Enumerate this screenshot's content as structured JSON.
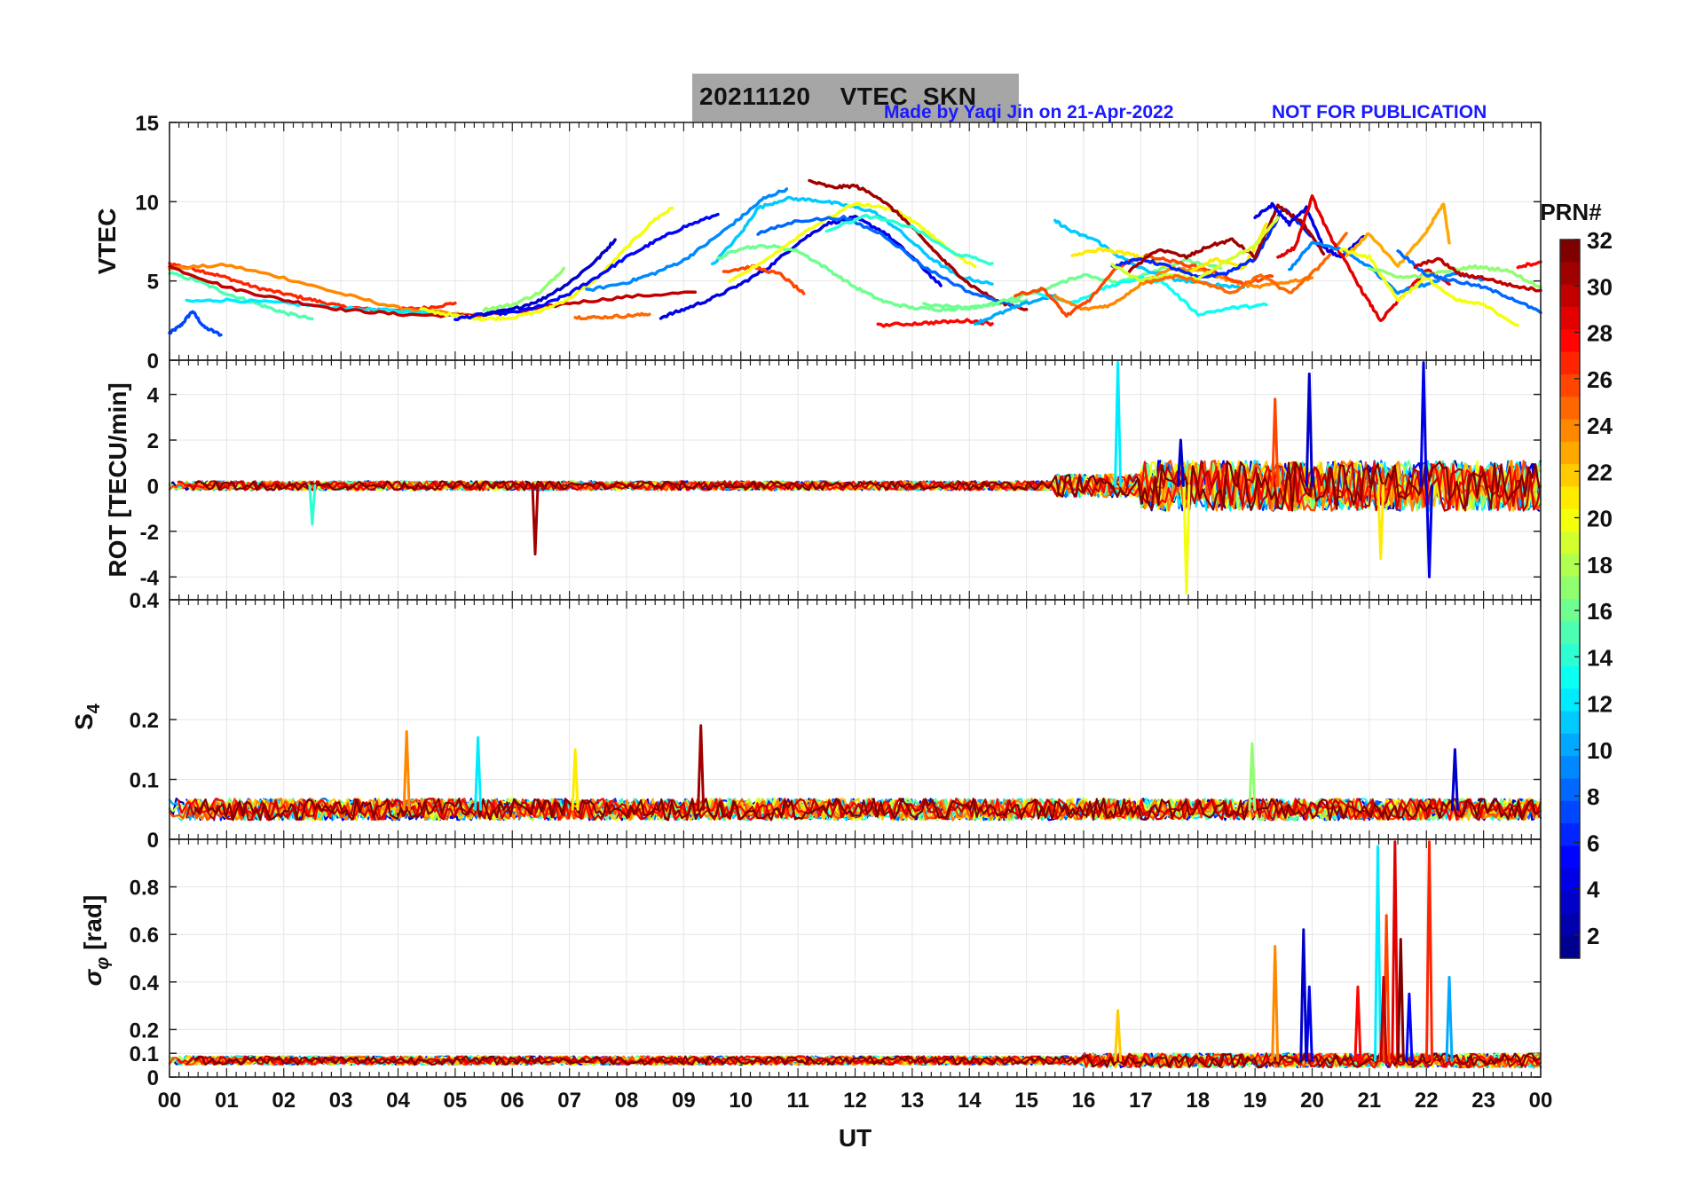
{
  "header": {
    "title": "20211120    VTEC  SKN",
    "credit": "Made by Yaqi Jin on 21-Apr-2022",
    "notice": "NOT FOR PUBLICATION"
  },
  "colors": {
    "credit": "#1a1aff",
    "title_box": "#a6a6a6",
    "colormap": [
      "#00008f",
      "#0000ff",
      "#0080ff",
      "#00ffff",
      "#80ff80",
      "#ffff00",
      "#ff8000",
      "#ff0000",
      "#800000"
    ]
  },
  "chart_data": [
    {
      "id": "vtec",
      "type": "line",
      "ylabel": "VTEC",
      "ylim": [
        0,
        15
      ],
      "yticks": [
        "0",
        "5",
        "10",
        "15"
      ],
      "x_unit": "UT hour",
      "series": [
        {
          "prn": 7,
          "x": [
            0,
            0.2,
            0.4,
            0.6,
            0.9
          ],
          "y": [
            1.7,
            2.2,
            3.1,
            2.1,
            1.6
          ]
        },
        {
          "prn": 27,
          "x": [
            0,
            0.5,
            1,
            1.5,
            2,
            2.5,
            3,
            3.5,
            4,
            4.5,
            5
          ],
          "y": [
            6.1,
            5.7,
            5.2,
            4.6,
            4.2,
            3.8,
            3.4,
            3.2,
            3.2,
            3.3,
            3.6
          ]
        },
        {
          "prn": 24,
          "x": [
            0,
            1,
            2,
            3,
            4,
            5,
            5.5
          ],
          "y": [
            5.8,
            6.0,
            5.2,
            4.2,
            3.3,
            2.9,
            2.8
          ]
        },
        {
          "prn": 15,
          "x": [
            0,
            0.5,
            1,
            1.5,
            2,
            2.5
          ],
          "y": [
            5.5,
            5.0,
            4.2,
            3.6,
            3.0,
            2.6
          ]
        },
        {
          "prn": 12,
          "x": [
            0.3,
            1,
            2,
            3,
            4,
            5
          ],
          "y": [
            3.7,
            3.8,
            3.6,
            3.3,
            3.1,
            2.9
          ]
        },
        {
          "prn": 30,
          "x": [
            0,
            1,
            2,
            3,
            4,
            5,
            6,
            7,
            8,
            9.2
          ],
          "y": [
            5.9,
            4.6,
            3.8,
            3.2,
            2.9,
            2.8,
            3.0,
            3.6,
            4.0,
            4.3
          ]
        },
        {
          "prn": 20,
          "x": [
            4.4,
            5,
            5.5,
            6,
            6.5,
            7,
            7.5,
            8,
            8.5,
            8.8
          ],
          "y": [
            3.2,
            2.8,
            2.6,
            2.7,
            3.1,
            3.9,
            5.2,
            7.1,
            8.9,
            9.6
          ]
        },
        {
          "prn": 5,
          "x": [
            5,
            5.5,
            6,
            6.5,
            7,
            7.5,
            8,
            8.5,
            9,
            9.6
          ],
          "y": [
            2.6,
            2.9,
            3.0,
            3.4,
            4.2,
            5.3,
            6.5,
            7.5,
            8.4,
            9.2
          ]
        },
        {
          "prn": 3,
          "x": [
            5.5,
            6,
            6.5,
            7,
            7.5,
            7.8
          ],
          "y": [
            2.9,
            3.2,
            3.8,
            4.9,
            6.4,
            7.6
          ]
        },
        {
          "prn": 17,
          "x": [
            5.5,
            6,
            6.5,
            6.9
          ],
          "y": [
            3.2,
            3.5,
            4.3,
            5.8
          ]
        },
        {
          "prn": 25,
          "x": [
            7.1,
            7.5,
            8,
            8.4
          ],
          "y": [
            2.7,
            2.7,
            2.8,
            2.9
          ]
        },
        {
          "prn": 4,
          "x": [
            8.6,
            9,
            9.5,
            10,
            10.5,
            11,
            11.5,
            12,
            12.5,
            13,
            13.5
          ],
          "y": [
            2.7,
            3.2,
            3.9,
            4.8,
            5.9,
            7.4,
            8.6,
            9.0,
            8.1,
            6.5,
            4.7
          ]
        },
        {
          "prn": 9,
          "x": [
            7.3,
            8,
            8.5,
            9,
            9.5,
            10,
            10.4,
            10.8
          ],
          "y": [
            4.4,
            4.9,
            5.5,
            6.3,
            7.6,
            9.0,
            10.2,
            10.8
          ]
        },
        {
          "prn": 11,
          "x": [
            9.5,
            10,
            10.3,
            10.8,
            11.3,
            11.8,
            12.3,
            12.7,
            13.3,
            13.8,
            14.4
          ],
          "y": [
            6.0,
            8.0,
            9.6,
            10.2,
            10.1,
            9.8,
            9.4,
            8.4,
            6.5,
            5.3,
            4.8
          ]
        },
        {
          "prn": 16,
          "x": [
            9.6,
            10,
            10.5,
            11,
            11.5,
            12,
            12.5,
            13,
            13.5,
            14,
            14.5,
            15
          ],
          "y": [
            6.4,
            7.1,
            7.2,
            6.9,
            5.8,
            4.6,
            3.7,
            3.3,
            3.2,
            3.3,
            3.6,
            3.8
          ]
        },
        {
          "prn": 26,
          "x": [
            9.7,
            10.2,
            10.7,
            11.1
          ],
          "y": [
            5.6,
            5.9,
            5.4,
            4.2
          ]
        },
        {
          "prn": 20,
          "x": [
            9.8,
            10.5,
            11.2,
            12,
            12.7,
            13.2,
            13.7,
            14.1
          ],
          "y": [
            4.9,
            6.5,
            8.3,
            9.9,
            9.5,
            8.3,
            6.8,
            5.9
          ]
        },
        {
          "prn": 31,
          "x": [
            11.2,
            11.6,
            12,
            12.4,
            12.8,
            13.2,
            13.6,
            14,
            14.5,
            15
          ],
          "y": [
            11.3,
            10.9,
            11.0,
            10.3,
            9.1,
            7.6,
            6.1,
            4.8,
            3.7,
            3.2
          ]
        },
        {
          "prn": 8,
          "x": [
            10.3,
            11,
            11.8,
            12.5,
            13.2,
            14,
            14.8
          ],
          "y": [
            8.0,
            8.8,
            9.0,
            7.9,
            5.9,
            4.3,
            3.4
          ]
        },
        {
          "prn": 14,
          "x": [
            11.5,
            12.2,
            13,
            13.7,
            14.4
          ],
          "y": [
            8.2,
            9.1,
            8.4,
            6.8,
            6.1
          ]
        },
        {
          "prn": 28,
          "x": [
            12.4,
            13,
            13.5,
            14,
            14.4
          ],
          "y": [
            2.2,
            2.3,
            2.4,
            2.5,
            2.3
          ]
        },
        {
          "prn": 10,
          "x": [
            14.1,
            14.5,
            15,
            15.5
          ],
          "y": [
            2.3,
            2.9,
            3.6,
            4.1
          ]
        },
        {
          "prn": 16,
          "x": [
            13.2,
            14,
            14.8,
            15.4,
            16,
            16.6,
            17.2,
            17.8,
            18.4
          ],
          "y": [
            3.5,
            3.3,
            3.9,
            4.6,
            5.4,
            4.9,
            5.6,
            6.3,
            5.8
          ]
        },
        {
          "prn": 11,
          "x": [
            15.5,
            15.8,
            16.2,
            16.6,
            17,
            17.6,
            18.2,
            18.8
          ],
          "y": [
            8.8,
            8.1,
            7.6,
            6.6,
            5.8,
            5.1,
            4.8,
            4.6
          ]
        },
        {
          "prn": 13,
          "x": [
            15.2,
            15.8,
            16.4,
            17,
            17.4,
            18,
            18.6,
            19.2
          ],
          "y": [
            4.2,
            3.6,
            4.6,
            5.2,
            4.9,
            2.9,
            3.3,
            3.5
          ]
        },
        {
          "prn": 24,
          "x": [
            15.5,
            16,
            16.5,
            17,
            17.5,
            18,
            18.5,
            19,
            19.5,
            20
          ],
          "y": [
            4.0,
            3.2,
            3.5,
            4.8,
            5.8,
            5.7,
            5.1,
            4.6,
            4.9,
            5.2
          ]
        },
        {
          "prn": 26,
          "x": [
            14.8,
            15.3,
            15.7,
            16.1,
            16.6,
            17.1,
            17.6,
            18.2,
            18.8,
            19.3
          ],
          "y": [
            4.1,
            4.5,
            2.8,
            3.8,
            5.9,
            6.6,
            6.2,
            5.7,
            4.8,
            5.3
          ]
        },
        {
          "prn": 21,
          "x": [
            15.8,
            16.3,
            16.8,
            17.2,
            17.8,
            18.3,
            18.8,
            19.2
          ],
          "y": [
            6.6,
            7.0,
            6.7,
            6.2,
            5.5,
            6.4,
            5.8,
            8.6
          ]
        },
        {
          "prn": 6,
          "x": [
            16.5,
            17,
            17.5,
            18,
            18.5,
            19,
            19.5,
            20
          ],
          "y": [
            5.9,
            6.4,
            5.9,
            5.2,
            5.5,
            6.4,
            9.6,
            7.8
          ]
        },
        {
          "prn": 31,
          "x": [
            16.8,
            17.3,
            17.8,
            18.2,
            18.6,
            19,
            19.4,
            19.8,
            20.2
          ],
          "y": [
            5.6,
            7.0,
            6.5,
            7.2,
            7.6,
            6.5,
            9.7,
            8.8,
            6.7
          ]
        },
        {
          "prn": 19,
          "x": [
            16.5,
            17,
            17.5,
            18,
            18.5,
            19,
            19.4
          ],
          "y": [
            6.0,
            5.0,
            5.4,
            5.1,
            6.3,
            7.2,
            9.0
          ]
        },
        {
          "prn": 25,
          "x": [
            17.1,
            17.6,
            18.1,
            18.6,
            19.1,
            19.6,
            20.1,
            20.6
          ],
          "y": [
            4.9,
            5.3,
            4.9,
            4.2,
            5.4,
            4.2,
            5.8,
            8.0
          ]
        },
        {
          "prn": 4,
          "x": [
            19,
            19.3,
            19.6,
            19.9,
            20.2,
            20.5,
            20.9
          ],
          "y": [
            9.0,
            9.8,
            8.6,
            9.6,
            7.1,
            6.5,
            7.8
          ]
        },
        {
          "prn": 29,
          "x": [
            19.4,
            19.7,
            20,
            20.3,
            20.6,
            20.9,
            21.2,
            21.6,
            22,
            22.4
          ],
          "y": [
            6.5,
            7.1,
            10.3,
            7.9,
            6.1,
            4.2,
            2.5,
            4.1,
            5.7,
            4.8
          ]
        },
        {
          "prn": 9,
          "x": [
            19.6,
            20,
            20.5,
            21,
            21.5,
            22,
            22.5,
            23
          ],
          "y": [
            5.7,
            7.4,
            7.0,
            5.9,
            4.3,
            4.8,
            5.5,
            5.1
          ]
        },
        {
          "prn": 23,
          "x": [
            20.6,
            21,
            21.5,
            22,
            22.3,
            22.4
          ],
          "y": [
            6.6,
            8.0,
            5.9,
            8.1,
            9.9,
            7.4
          ]
        },
        {
          "prn": 20,
          "x": [
            20.5,
            21,
            21.5,
            22,
            22.5,
            23,
            23.6
          ],
          "y": [
            7.0,
            6.5,
            3.8,
            5.2,
            3.8,
            3.5,
            2.2
          ]
        },
        {
          "prn": 17,
          "x": [
            21,
            21.6,
            22.2,
            22.8,
            23.4,
            24
          ],
          "y": [
            5.8,
            5.2,
            5.5,
            5.9,
            5.7,
            4.6
          ]
        },
        {
          "prn": 8,
          "x": [
            21.5,
            22,
            22.5,
            23,
            23.5,
            24
          ],
          "y": [
            6.9,
            5.4,
            5.0,
            4.6,
            3.9,
            3.0
          ]
        },
        {
          "prn": 30,
          "x": [
            21.8,
            22.2,
            22.6,
            23,
            23.5,
            24
          ],
          "y": [
            5.9,
            6.4,
            5.4,
            5.2,
            4.7,
            4.4
          ]
        },
        {
          "prn": 28,
          "x": [
            23.6,
            24
          ],
          "y": [
            5.9,
            6.2
          ]
        }
      ]
    },
    {
      "id": "rot",
      "type": "line",
      "ylabel": "ROT [TECU/min]",
      "ylim": [
        -5,
        5.5
      ],
      "yticks": [
        "-4",
        "-2",
        "0",
        "2",
        "4"
      ],
      "spikes": [
        {
          "prn": 14,
          "x": 2.5,
          "y": -1.7
        },
        {
          "prn": 31,
          "x": 6.4,
          "y": -3.0
        },
        {
          "prn": 12,
          "x": 16.6,
          "y": 5.4
        },
        {
          "prn": 20,
          "x": 17.8,
          "y": -4.7
        },
        {
          "prn": 3,
          "x": 17.7,
          "y": 2.0
        },
        {
          "prn": 3,
          "x": 19.95,
          "y": 4.9
        },
        {
          "prn": 26,
          "x": 19.35,
          "y": 3.8
        },
        {
          "prn": 4,
          "x": 21.95,
          "y": 5.4
        },
        {
          "prn": 4,
          "x": 22.05,
          "y": -4.0
        },
        {
          "prn": 21,
          "x": 21.2,
          "y": -3.2
        }
      ]
    },
    {
      "id": "s4",
      "type": "line",
      "ylabel": "S4",
      "ylim": [
        0,
        0.4
      ],
      "yticks": [
        "0",
        "0.1",
        "0.2",
        "0.4"
      ],
      "spikes": [
        {
          "prn": 24,
          "x": 4.15,
          "y": 0.18
        },
        {
          "prn": 12,
          "x": 5.4,
          "y": 0.17
        },
        {
          "prn": 31,
          "x": 9.3,
          "y": 0.19
        },
        {
          "prn": 21,
          "x": 7.1,
          "y": 0.15
        },
        {
          "prn": 17,
          "x": 18.95,
          "y": 0.16
        },
        {
          "prn": 3,
          "x": 22.5,
          "y": 0.15
        }
      ]
    },
    {
      "id": "sigma_phi",
      "type": "line",
      "ylabel": "σφ [rad]",
      "ylim": [
        0,
        1
      ],
      "yticks": [
        "0",
        "0.1",
        "0.2",
        "0.4",
        "0.6",
        "0.8"
      ],
      "spikes": [
        {
          "prn": 22,
          "x": 16.6,
          "y": 0.28
        },
        {
          "prn": 24,
          "x": 19.35,
          "y": 0.55
        },
        {
          "prn": 3,
          "x": 19.85,
          "y": 0.62
        },
        {
          "prn": 4,
          "x": 19.95,
          "y": 0.38
        },
        {
          "prn": 28,
          "x": 20.8,
          "y": 0.38
        },
        {
          "prn": 12,
          "x": 21.15,
          "y": 0.97
        },
        {
          "prn": 26,
          "x": 21.3,
          "y": 0.68
        },
        {
          "prn": 29,
          "x": 21.45,
          "y": 0.99
        },
        {
          "prn": 32,
          "x": 21.55,
          "y": 0.58
        },
        {
          "prn": 27,
          "x": 22.05,
          "y": 0.99
        },
        {
          "prn": 10,
          "x": 22.4,
          "y": 0.42
        },
        {
          "prn": 5,
          "x": 21.7,
          "y": 0.35
        },
        {
          "prn": 30,
          "x": 21.25,
          "y": 0.42
        }
      ]
    }
  ],
  "x_axis": {
    "label": "UT",
    "ticks": [
      "00",
      "01",
      "02",
      "03",
      "04",
      "05",
      "06",
      "07",
      "08",
      "09",
      "10",
      "11",
      "12",
      "13",
      "14",
      "15",
      "16",
      "17",
      "18",
      "19",
      "20",
      "21",
      "22",
      "23",
      "00"
    ]
  },
  "colorbar": {
    "title": "PRN#",
    "ticks": [
      "2",
      "4",
      "6",
      "8",
      "10",
      "12",
      "14",
      "16",
      "18",
      "20",
      "22",
      "24",
      "26",
      "28",
      "30",
      "32"
    ],
    "range": [
      1,
      32
    ]
  }
}
